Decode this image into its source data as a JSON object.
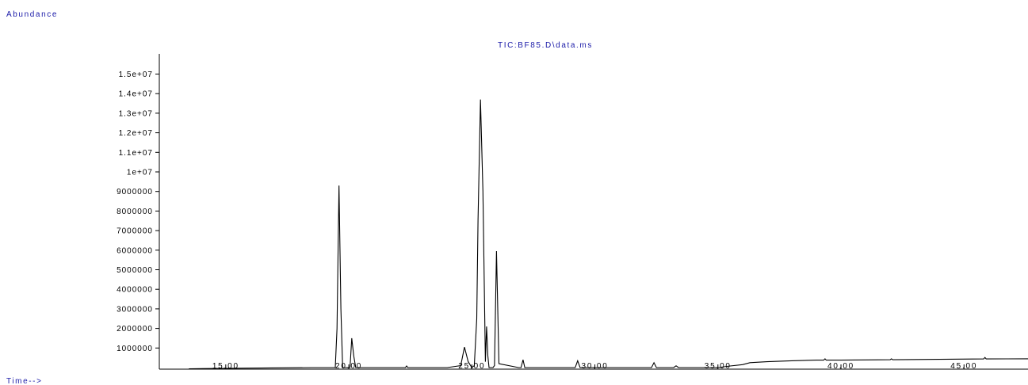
{
  "chart_data": {
    "type": "line",
    "title": "TIC:BF85.D\\data.ms",
    "ylabel": "Abundance",
    "xlabel": "Time-->",
    "xlim": [
      12.3,
      47.6
    ],
    "ylim": [
      0,
      15200000
    ],
    "x_ticks": [
      15.0,
      20.0,
      25.0,
      30.0,
      35.0,
      40.0,
      45.0
    ],
    "x_tick_labels": [
      "15.00",
      "20.00",
      "25.00",
      "30.00",
      "35.00",
      "40.00",
      "45.00"
    ],
    "y_ticks": [
      1000000,
      2000000,
      3000000,
      4000000,
      5000000,
      6000000,
      7000000,
      8000000,
      9000000,
      10000000,
      11000000,
      12000000,
      13000000,
      14000000,
      15000000
    ],
    "y_tick_labels": [
      "1000000",
      "2000000",
      "3000000",
      "4000000",
      "5000000",
      "6000000",
      "7000000",
      "8000000",
      "9000000",
      "1e+07",
      "1.1e+07",
      "1.2e+07",
      "1.3e+07",
      "1.4e+07",
      "1.5e+07"
    ],
    "grid": false,
    "series": [
      {
        "x": [
          13.5,
          16.0,
          18.5,
          19.45,
          19.52,
          19.6,
          19.68,
          19.75,
          19.85,
          20.05,
          20.12,
          20.2,
          20.28,
          20.35,
          21.5,
          22.3,
          22.35,
          22.4,
          24.0,
          24.55,
          24.7,
          24.85,
          25.0,
          25.1,
          25.2,
          25.25,
          25.35,
          25.45,
          25.55,
          25.6,
          25.65,
          25.7,
          25.75,
          25.8,
          25.86,
          25.92,
          26.0,
          26.1,
          26.9,
          27.0,
          27.08,
          27.15,
          27.25,
          27.35,
          28.0,
          29.2,
          29.3,
          29.4,
          30.0,
          32.3,
          32.4,
          32.5,
          33.2,
          33.3,
          33.4,
          34.0,
          35.0,
          35.5,
          36.0,
          36.3,
          37.0,
          38.0,
          39.0,
          39.3,
          39.35,
          39.4,
          40.0,
          42.0,
          42.05,
          42.1,
          44.0,
          45.8,
          45.85,
          45.9,
          47.6
        ],
        "y": [
          -60000,
          -30000,
          0,
          0,
          2000000,
          9300000,
          3000000,
          0,
          0,
          0,
          1500000,
          600000,
          0,
          0,
          0,
          0,
          80000,
          0,
          0,
          100000,
          1050000,
          300000,
          0,
          100000,
          2500000,
          7500000,
          13700000,
          9000000,
          300000,
          2100000,
          600000,
          0,
          0,
          0,
          0,
          100000,
          5950000,
          200000,
          0,
          0,
          400000,
          0,
          0,
          0,
          0,
          0,
          350000,
          0,
          0,
          0,
          250000,
          0,
          0,
          90000,
          0,
          0,
          0,
          80000,
          150000,
          250000,
          300000,
          350000,
          380000,
          380000,
          450000,
          380000,
          380000,
          400000,
          450000,
          400000,
          420000,
          440000,
          520000,
          440000,
          450000
        ]
      }
    ]
  }
}
